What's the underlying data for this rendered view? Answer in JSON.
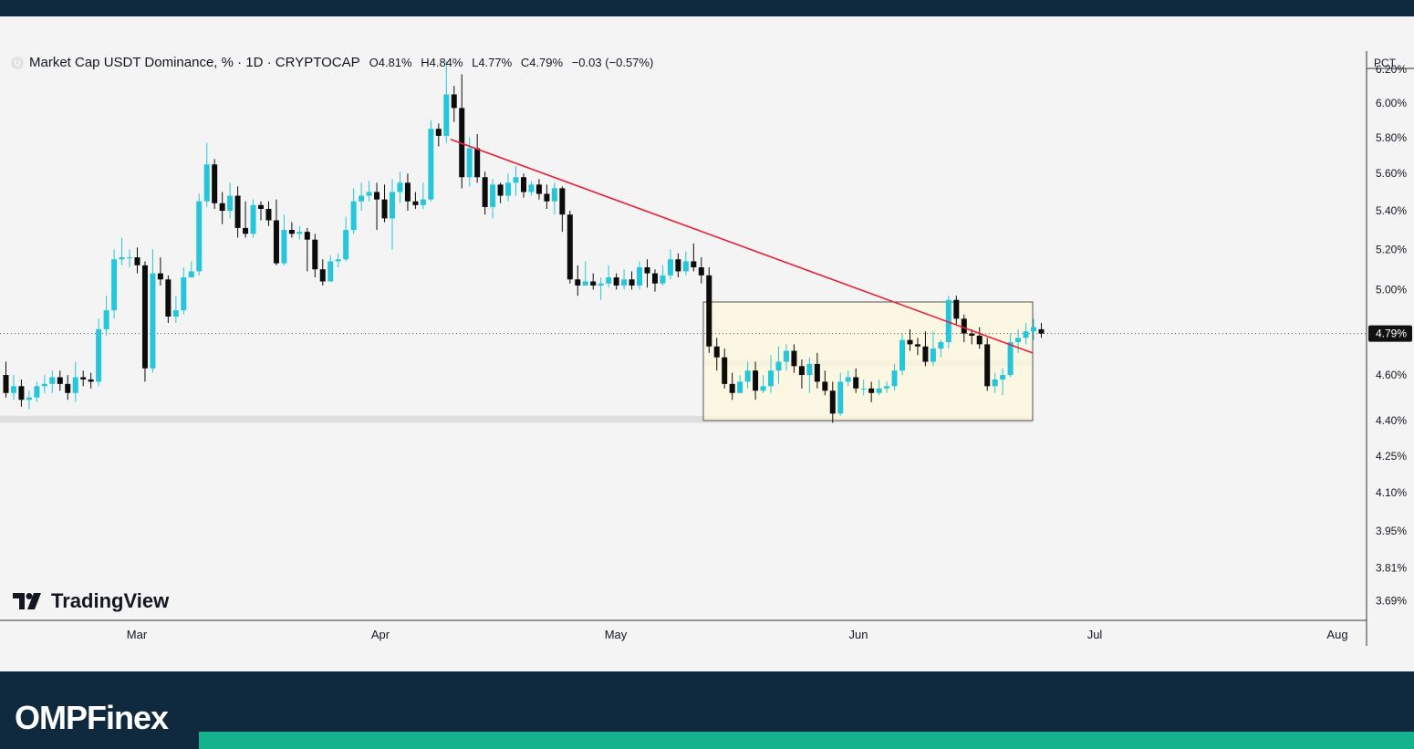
{
  "legend": {
    "symbol_icon": "U",
    "title": "Market Cap USDT Dominance, % · 1D · CRYPTOCAP",
    "open": "O4.81%",
    "high": "H4.84%",
    "low": "L4.77%",
    "close": "C4.79%",
    "change": "−0.03 (−0.57%)"
  },
  "price_axis": {
    "unit_label": "PCT",
    "current_price_label": "4.79%",
    "ticks": [
      "6.20%",
      "6.00%",
      "5.80%",
      "5.60%",
      "5.40%",
      "5.20%",
      "5.00%",
      "4.60%",
      "4.40%",
      "4.25%",
      "4.10%",
      "3.95%",
      "3.81%",
      "3.69%"
    ]
  },
  "watermark": {
    "text": "TradingView",
    "icon": "tradingview-logo-icon"
  },
  "footer": {
    "brand": "OMPFinex"
  },
  "colors": {
    "up": "#26c6da",
    "down": "#0c0c0c",
    "trendline": "#e8203a",
    "range_box": "#fff8dc",
    "header": "#0f2a3e",
    "accent": "#14b38e"
  },
  "chart_data": {
    "type": "candlestick",
    "title": "Market Cap USDT Dominance, % · 1D · CRYPTOCAP",
    "ylabel": "PCT",
    "y_scale": "log",
    "ylim": [
      3.62,
      6.3
    ],
    "x_ticks": [
      "Mar",
      "Apr",
      "May",
      "Jun",
      "Jul",
      "Aug"
    ],
    "y_ticks": [
      6.2,
      6.0,
      5.8,
      5.6,
      5.4,
      5.2,
      5.0,
      4.6,
      4.4,
      4.25,
      4.1,
      3.95,
      3.81,
      3.69
    ],
    "last_close": 4.79,
    "candles": [
      [
        4.6,
        4.52,
        4.66,
        4.5
      ],
      [
        4.52,
        4.55,
        4.6,
        4.49
      ],
      [
        4.55,
        4.49,
        4.58,
        4.46
      ],
      [
        4.49,
        4.5,
        4.53,
        4.45
      ],
      [
        4.5,
        4.55,
        4.57,
        4.48
      ],
      [
        4.55,
        4.56,
        4.6,
        4.52
      ],
      [
        4.56,
        4.59,
        4.62,
        4.52
      ],
      [
        4.59,
        4.56,
        4.62,
        4.53
      ],
      [
        4.56,
        4.52,
        4.6,
        4.49
      ],
      [
        4.52,
        4.59,
        4.66,
        4.48
      ],
      [
        4.59,
        4.58,
        4.62,
        4.55
      ],
      [
        4.58,
        4.57,
        4.61,
        4.54
      ],
      [
        4.57,
        4.81,
        4.86,
        4.55
      ],
      [
        4.81,
        4.9,
        4.97,
        4.78
      ],
      [
        4.9,
        5.15,
        5.2,
        4.86
      ],
      [
        5.15,
        5.16,
        5.26,
        5.12
      ],
      [
        5.16,
        5.16,
        5.2,
        5.11
      ],
      [
        5.16,
        5.12,
        5.21,
        5.08
      ],
      [
        5.12,
        4.63,
        5.14,
        4.57
      ],
      [
        4.63,
        5.08,
        5.2,
        4.61
      ],
      [
        5.08,
        5.05,
        5.16,
        5.02
      ],
      [
        5.05,
        4.87,
        5.07,
        4.84
      ],
      [
        4.87,
        4.9,
        4.97,
        4.84
      ],
      [
        4.9,
        5.06,
        5.11,
        4.88
      ],
      [
        5.06,
        5.09,
        5.14,
        5.06
      ],
      [
        5.09,
        5.45,
        5.49,
        5.07
      ],
      [
        5.45,
        5.65,
        5.77,
        5.42
      ],
      [
        5.65,
        5.44,
        5.68,
        5.41
      ],
      [
        5.44,
        5.4,
        5.5,
        5.33
      ],
      [
        5.4,
        5.48,
        5.55,
        5.36
      ],
      [
        5.48,
        5.31,
        5.53,
        5.26
      ],
      [
        5.31,
        5.28,
        5.45,
        5.26
      ],
      [
        5.28,
        5.43,
        5.46,
        5.26
      ],
      [
        5.43,
        5.41,
        5.45,
        5.35
      ],
      [
        5.41,
        5.35,
        5.45,
        5.32
      ],
      [
        5.35,
        5.13,
        5.46,
        5.12
      ],
      [
        5.13,
        5.3,
        5.38,
        5.12
      ],
      [
        5.3,
        5.28,
        5.34,
        5.26
      ],
      [
        5.28,
        5.29,
        5.32,
        5.25
      ],
      [
        5.29,
        5.25,
        5.31,
        5.09
      ],
      [
        5.25,
        5.1,
        5.28,
        5.06
      ],
      [
        5.1,
        5.04,
        5.15,
        5.02
      ],
      [
        5.04,
        5.14,
        5.17,
        5.04
      ],
      [
        5.14,
        5.15,
        5.18,
        5.11
      ],
      [
        5.15,
        5.3,
        5.37,
        5.14
      ],
      [
        5.3,
        5.45,
        5.52,
        5.28
      ],
      [
        5.45,
        5.48,
        5.55,
        5.4
      ],
      [
        5.48,
        5.5,
        5.56,
        5.45
      ],
      [
        5.5,
        5.46,
        5.55,
        5.3
      ],
      [
        5.46,
        5.36,
        5.54,
        5.34
      ],
      [
        5.36,
        5.5,
        5.57,
        5.2
      ],
      [
        5.5,
        5.55,
        5.61,
        5.44
      ],
      [
        5.55,
        5.45,
        5.6,
        5.4
      ],
      [
        5.45,
        5.43,
        5.5,
        5.41
      ],
      [
        5.43,
        5.46,
        5.55,
        5.41
      ],
      [
        5.46,
        5.85,
        5.9,
        5.45
      ],
      [
        5.85,
        5.81,
        5.88,
        5.75
      ],
      [
        5.81,
        6.05,
        6.25,
        5.77
      ],
      [
        6.05,
        5.97,
        6.1,
        5.89
      ],
      [
        5.97,
        5.58,
        6.17,
        5.52
      ],
      [
        5.58,
        5.74,
        5.8,
        5.53
      ],
      [
        5.74,
        5.58,
        5.82,
        5.55
      ],
      [
        5.58,
        5.42,
        5.61,
        5.38
      ],
      [
        5.42,
        5.54,
        5.57,
        5.36
      ],
      [
        5.54,
        5.48,
        5.55,
        5.44
      ],
      [
        5.48,
        5.55,
        5.6,
        5.45
      ],
      [
        5.55,
        5.58,
        5.64,
        5.48
      ],
      [
        5.58,
        5.5,
        5.6,
        5.47
      ],
      [
        5.5,
        5.54,
        5.56,
        5.48
      ],
      [
        5.54,
        5.49,
        5.57,
        5.46
      ],
      [
        5.49,
        5.45,
        5.54,
        5.41
      ],
      [
        5.45,
        5.52,
        5.55,
        5.38
      ],
      [
        5.52,
        5.38,
        5.53,
        5.29
      ],
      [
        5.38,
        5.05,
        5.4,
        5.03
      ],
      [
        5.05,
        5.02,
        5.12,
        4.97
      ],
      [
        5.02,
        5.04,
        5.14,
        5.02
      ],
      [
        5.04,
        5.02,
        5.08,
        5.0
      ],
      [
        5.02,
        5.03,
        5.06,
        4.95
      ],
      [
        5.03,
        5.06,
        5.12,
        5.01
      ],
      [
        5.06,
        5.02,
        5.08,
        5.0
      ],
      [
        5.02,
        5.05,
        5.1,
        5.0
      ],
      [
        5.05,
        5.02,
        5.09,
        5.0
      ],
      [
        5.02,
        5.11,
        5.14,
        5.0
      ],
      [
        5.11,
        5.08,
        5.15,
        5.01
      ],
      [
        5.08,
        5.03,
        5.1,
        4.99
      ],
      [
        5.03,
        5.07,
        5.12,
        5.02
      ],
      [
        5.07,
        5.15,
        5.2,
        5.05
      ],
      [
        5.15,
        5.09,
        5.18,
        5.06
      ],
      [
        5.09,
        5.14,
        5.19,
        5.07
      ],
      [
        5.14,
        5.11,
        5.23,
        5.09
      ],
      [
        5.11,
        5.07,
        5.16,
        5.03
      ],
      [
        5.07,
        4.73,
        5.11,
        4.7
      ],
      [
        4.73,
        4.68,
        4.77,
        4.62
      ],
      [
        4.68,
        4.56,
        4.72,
        4.54
      ],
      [
        4.56,
        4.52,
        4.61,
        4.49
      ],
      [
        4.52,
        4.57,
        4.6,
        4.52
      ],
      [
        4.57,
        4.62,
        4.66,
        4.54
      ],
      [
        4.62,
        4.53,
        4.66,
        4.49
      ],
      [
        4.53,
        4.55,
        4.6,
        4.52
      ],
      [
        4.55,
        4.62,
        4.69,
        4.52
      ],
      [
        4.62,
        4.66,
        4.73,
        4.56
      ],
      [
        4.66,
        4.71,
        4.74,
        4.62
      ],
      [
        4.71,
        4.64,
        4.74,
        4.61
      ],
      [
        4.64,
        4.6,
        4.67,
        4.54
      ],
      [
        4.6,
        4.65,
        4.68,
        4.52
      ],
      [
        4.65,
        4.57,
        4.7,
        4.54
      ],
      [
        4.57,
        4.53,
        4.62,
        4.51
      ],
      [
        4.53,
        4.43,
        4.57,
        4.39
      ],
      [
        4.43,
        4.57,
        4.61,
        4.42
      ],
      [
        4.57,
        4.59,
        4.62,
        4.55
      ],
      [
        4.59,
        4.54,
        4.63,
        4.52
      ],
      [
        4.54,
        4.54,
        4.58,
        4.51
      ],
      [
        4.54,
        4.52,
        4.57,
        4.48
      ],
      [
        4.52,
        4.54,
        4.58,
        4.51
      ],
      [
        4.54,
        4.55,
        4.57,
        4.52
      ],
      [
        4.55,
        4.62,
        4.65,
        4.53
      ],
      [
        4.62,
        4.76,
        4.79,
        4.6
      ],
      [
        4.76,
        4.74,
        4.81,
        4.71
      ],
      [
        4.74,
        4.73,
        4.77,
        4.69
      ],
      [
        4.73,
        4.66,
        4.8,
        4.64
      ],
      [
        4.66,
        4.72,
        4.8,
        4.64
      ],
      [
        4.72,
        4.75,
        4.76,
        4.68
      ],
      [
        4.75,
        4.95,
        4.97,
        4.72
      ],
      [
        4.95,
        4.86,
        4.97,
        4.83
      ],
      [
        4.86,
        4.79,
        4.88,
        4.75
      ],
      [
        4.79,
        4.78,
        4.81,
        4.74
      ],
      [
        4.78,
        4.74,
        4.82,
        4.72
      ],
      [
        4.74,
        4.55,
        4.77,
        4.53
      ],
      [
        4.55,
        4.58,
        4.61,
        4.52
      ],
      [
        4.58,
        4.6,
        4.63,
        4.51
      ],
      [
        4.6,
        4.75,
        4.79,
        4.59
      ],
      [
        4.75,
        4.77,
        4.81,
        4.7
      ],
      [
        4.77,
        4.8,
        4.84,
        4.74
      ],
      [
        4.8,
        4.82,
        4.86,
        4.76
      ],
      [
        4.81,
        4.79,
        4.84,
        4.77
      ]
    ],
    "trendline": {
      "from": {
        "date": "Apr 9",
        "value": 5.79
      },
      "to": {
        "date": "Jun 23",
        "value": 4.7
      }
    },
    "range_box": {
      "top": 4.94,
      "bottom": 4.4
    },
    "support_zones": [
      {
        "from": 4.39,
        "to": 4.42
      },
      {
        "from": 4.64,
        "to": 4.67
      }
    ]
  }
}
